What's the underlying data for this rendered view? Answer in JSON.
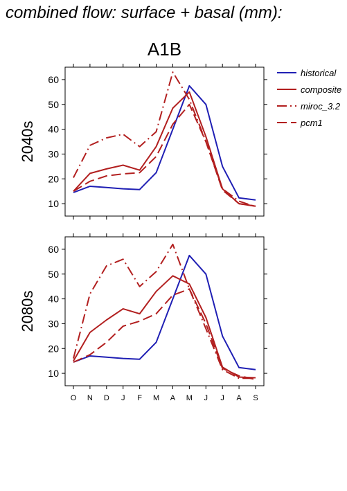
{
  "title": "combined flow: surface + basal (mm):",
  "chart_data": {
    "type": "line",
    "scenario": "A1B",
    "categories": [
      "O",
      "N",
      "D",
      "J",
      "F",
      "M",
      "A",
      "M",
      "J",
      "J",
      "A",
      "S"
    ],
    "ylim": [
      5,
      65
    ],
    "yticks": [
      10,
      20,
      30,
      40,
      50,
      60
    ],
    "colors": {
      "historical": "#1f1fb4",
      "projections": "#b21f1f"
    },
    "legend": {
      "placement": "right",
      "entries": [
        {
          "label": "historical",
          "color": "#1f1fb4",
          "style": "solid"
        },
        {
          "label": "composite",
          "color": "#b21f1f",
          "style": "solid"
        },
        {
          "label": "miroc_3.2",
          "color": "#b21f1f",
          "style": "dashdot"
        },
        {
          "label": "pcm1",
          "color": "#b21f1f",
          "style": "dashed"
        }
      ]
    },
    "panels": [
      {
        "label": "2040s",
        "series": [
          {
            "name": "historical",
            "color": "#1f1fb4",
            "style": "solid",
            "values": [
              14.5,
              17,
              16.5,
              16,
              15.7,
              22.5,
              40,
              57.5,
              50,
              25,
              12.3,
              11.5
            ]
          },
          {
            "name": "composite",
            "color": "#b21f1f",
            "style": "solid",
            "values": [
              15,
              22.2,
              24,
              25.5,
              23.5,
              33,
              48.5,
              55,
              37,
              16,
              10,
              9
            ]
          },
          {
            "name": "miroc_3.2",
            "color": "#b21f1f",
            "style": "dashdot",
            "values": [
              20.5,
              33.5,
              36.5,
              38,
              33,
              39,
              63,
              52,
              35,
              16,
              11,
              8.8
            ]
          },
          {
            "name": "pcm1",
            "color": "#b21f1f",
            "style": "dashed",
            "values": [
              15,
              19,
              21.2,
              22,
              22.5,
              29,
              42,
              50,
              35,
              15.5,
              10,
              9
            ]
          }
        ]
      },
      {
        "label": "2080s",
        "series": [
          {
            "name": "historical",
            "color": "#1f1fb4",
            "style": "solid",
            "values": [
              14.5,
              17,
              16.5,
              16,
              15.7,
              22.5,
              40,
              57.5,
              50,
              25,
              12.3,
              11.5
            ]
          },
          {
            "name": "composite",
            "color": "#b21f1f",
            "style": "solid",
            "values": [
              15,
              26.5,
              31.5,
              36,
              34,
              43,
              49.3,
              46,
              32.5,
              12.5,
              8.5,
              8.2
            ]
          },
          {
            "name": "miroc_3.2",
            "color": "#b21f1f",
            "style": "dashdot",
            "values": [
              16,
              42,
              53.3,
              56,
              45,
              51,
              62,
              44,
              28,
              11.5,
              8,
              8
            ]
          },
          {
            "name": "pcm1",
            "color": "#b21f1f",
            "style": "dashed",
            "values": [
              14.5,
              17.5,
              22.5,
              29,
              31,
              34,
              41.5,
              44,
              30,
              12,
              9,
              7.5
            ]
          }
        ]
      }
    ]
  }
}
